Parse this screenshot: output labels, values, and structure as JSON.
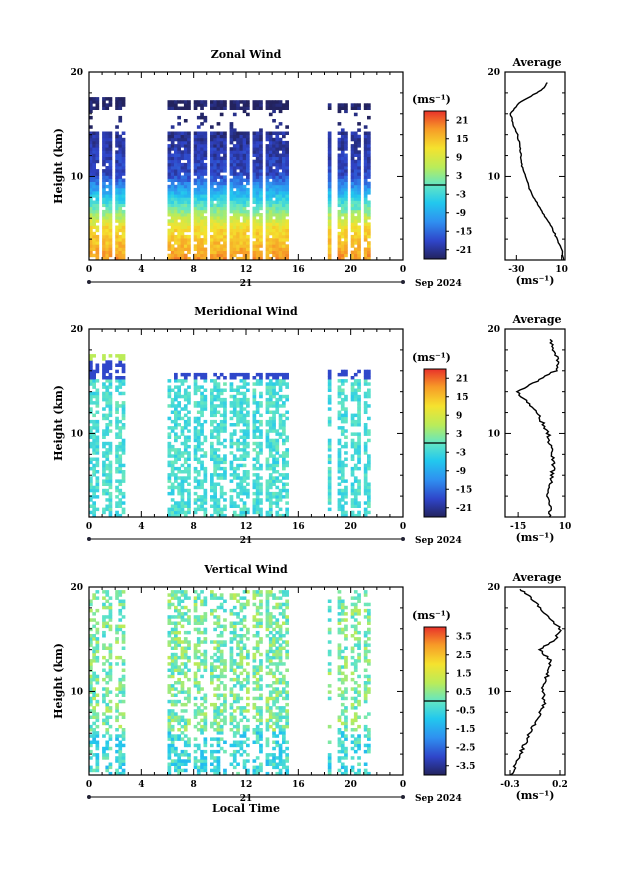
{
  "chart_data": [
    {
      "type": "heatmap",
      "title": "Zonal Wind",
      "ylabel": "Height (km)",
      "ylim": [
        2,
        20
      ],
      "yticks": [
        10,
        20
      ],
      "xlim": [
        0,
        24
      ],
      "x_ticklabels": [
        "0",
        "4",
        "8",
        "12",
        "16",
        "20",
        "0"
      ],
      "date_label": "21",
      "month_label": "Sep 2024",
      "colorbar": {
        "unit": "(ms⁻¹)",
        "range": [
          -24,
          24
        ],
        "ticks": [
          "21",
          "15",
          "9",
          "3",
          "-3",
          "-9",
          "-15",
          "-21"
        ]
      },
      "profile": {
        "title": "Average",
        "xlim": [
          -40,
          13
        ],
        "x_ticklabels": [
          "-30",
          "10"
        ],
        "xlabel": "(ms⁻¹)",
        "heights": [
          2,
          3,
          4,
          5,
          6,
          7,
          8,
          9,
          10,
          11,
          12,
          13,
          14,
          15,
          16,
          17,
          18,
          18.5,
          19
        ],
        "values": [
          12,
          10,
          6,
          2,
          -4,
          -9,
          -15,
          -19,
          -22,
          -25,
          -26,
          -27,
          -29,
          -33,
          -35,
          -28,
          -12,
          -5,
          -3
        ]
      }
    },
    {
      "type": "heatmap",
      "title": "Meridional Wind",
      "ylabel": "Height (km)",
      "ylim": [
        2,
        20
      ],
      "yticks": [
        10,
        20
      ],
      "xlim": [
        0,
        24
      ],
      "x_ticklabels": [
        "0",
        "4",
        "8",
        "12",
        "16",
        "20",
        "0"
      ],
      "date_label": "21",
      "month_label": "Sep 2024",
      "colorbar": {
        "unit": "(ms⁻¹)",
        "range": [
          -24,
          24
        ],
        "ticks": [
          "21",
          "15",
          "9",
          "3",
          "-3",
          "-9",
          "-15",
          "-21"
        ]
      },
      "profile": {
        "title": "Average",
        "xlim": [
          -22,
          10
        ],
        "x_ticklabels": [
          "-15",
          "10"
        ],
        "xlabel": "(ms⁻¹)",
        "heights": [
          2,
          3,
          4,
          5,
          6,
          7,
          8,
          9,
          10,
          11,
          12,
          13,
          14,
          15,
          16,
          17,
          18,
          19
        ],
        "values": [
          2,
          2,
          1,
          2,
          3,
          4,
          3,
          2,
          1,
          -2,
          -5,
          -10,
          -16,
          -5,
          5,
          6,
          4,
          2
        ]
      }
    },
    {
      "type": "heatmap",
      "title": "Vertical Wind",
      "ylabel": "Height (km)",
      "xlabel": "Local Time",
      "ylim": [
        2,
        20
      ],
      "yticks": [
        10,
        20
      ],
      "xlim": [
        0,
        24
      ],
      "x_ticklabels": [
        "0",
        "4",
        "8",
        "12",
        "16",
        "20",
        "0"
      ],
      "date_label": "21",
      "month_label": "Sep 2024",
      "colorbar": {
        "unit": "(ms⁻¹)",
        "range": [
          -4,
          4
        ],
        "ticks": [
          "3.5",
          "2.5",
          "1.5",
          "0.5",
          "-0.5",
          "-1.5",
          "-2.5",
          "-3.5"
        ]
      },
      "profile": {
        "title": "Average",
        "xlim": [
          -0.35,
          0.25
        ],
        "x_ticklabels": [
          "-0.3",
          "0.2"
        ],
        "xlabel": "(ms⁻¹)",
        "heights": [
          2,
          3,
          4,
          5,
          6,
          7,
          8,
          9,
          10,
          11,
          12,
          13,
          14,
          15,
          16,
          17,
          18,
          19,
          19.8
        ],
        "values": [
          -0.28,
          -0.25,
          -0.2,
          -0.15,
          -0.1,
          -0.05,
          0.0,
          0.05,
          0.02,
          0.06,
          0.08,
          0.1,
          0.0,
          0.15,
          0.2,
          0.1,
          0.0,
          -0.1,
          -0.2
        ]
      }
    }
  ]
}
